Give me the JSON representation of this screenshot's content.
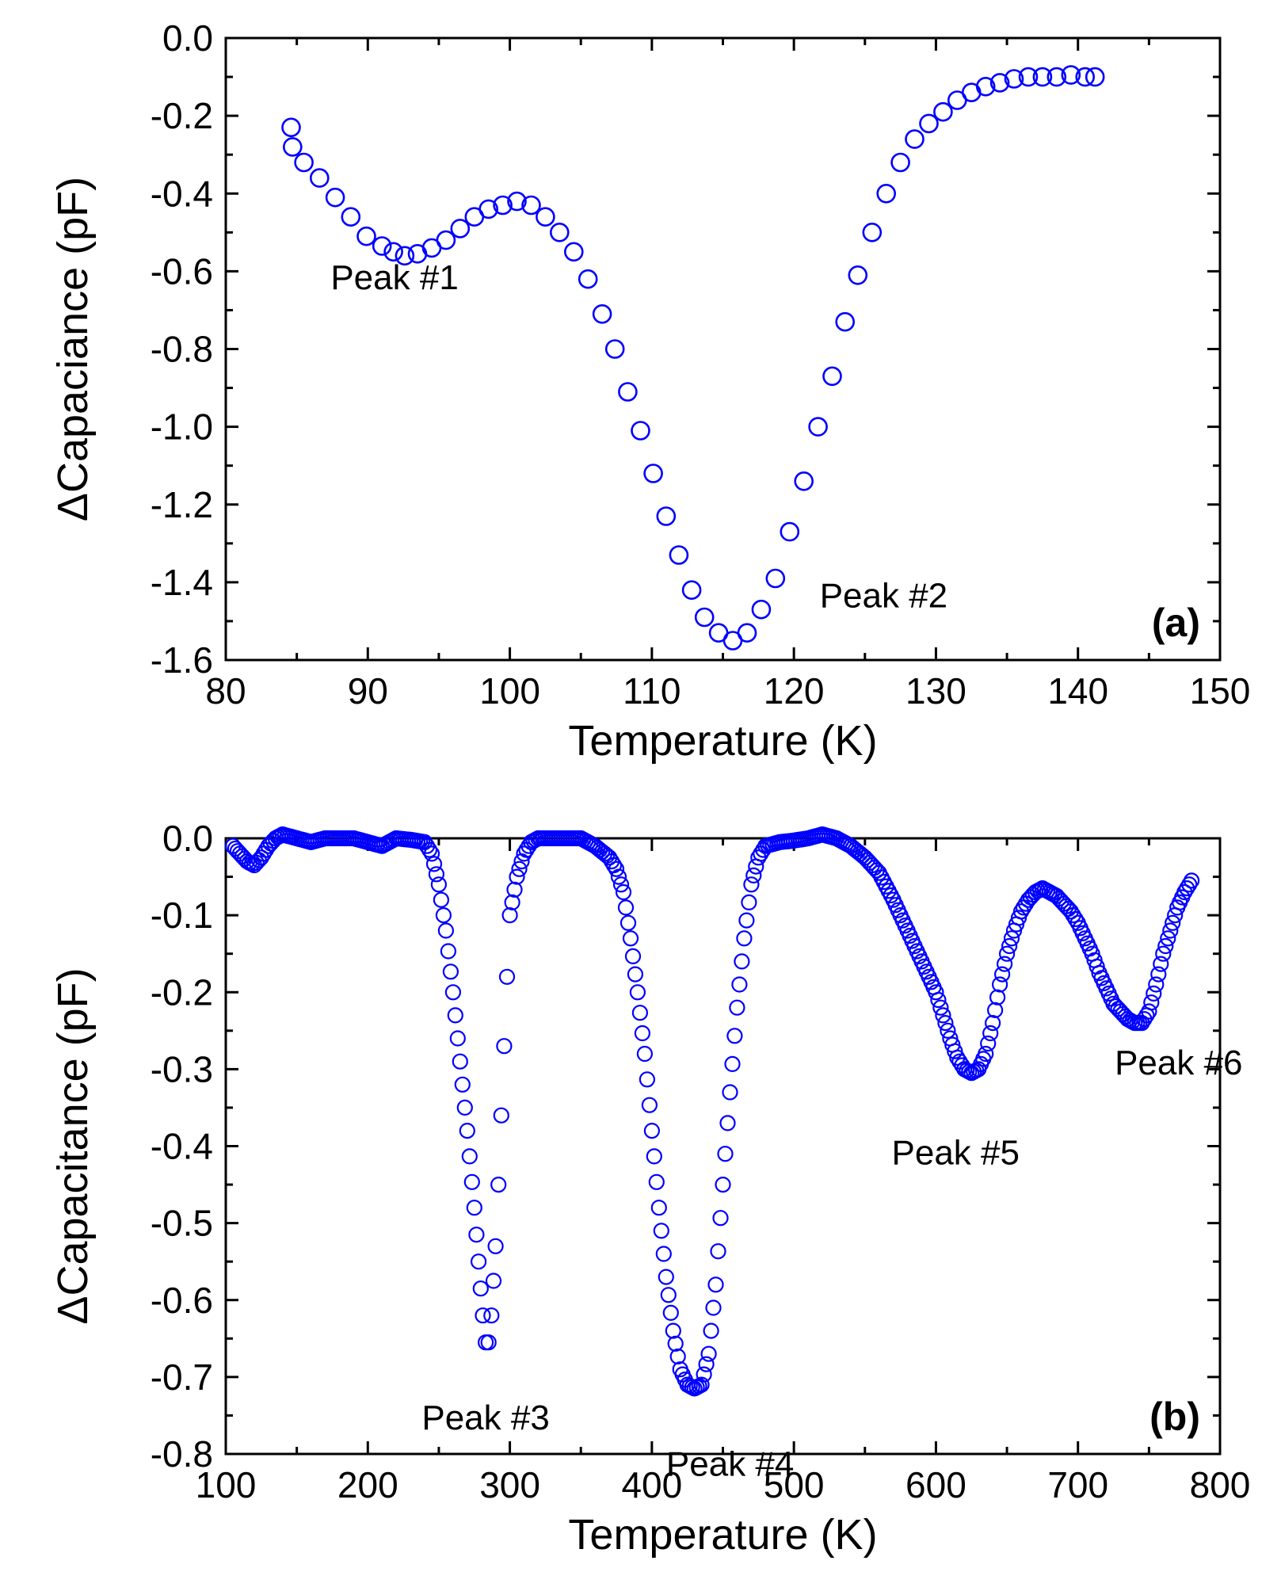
{
  "colors": {
    "marker": "#0000ff",
    "axis": "#000000",
    "background": "#ffffff"
  },
  "chart_data": [
    {
      "panel_label": "(a)",
      "type": "scatter",
      "marker": "open-circle",
      "xlabel": "Temperature (K)",
      "ylabel": "ΔCapaciance (pF)",
      "xlim": [
        80,
        150
      ],
      "ylim": [
        -1.6,
        0.0
      ],
      "xticks": [
        80,
        90,
        100,
        110,
        120,
        130,
        140,
        150
      ],
      "yticks": [
        0.0,
        -0.2,
        -0.4,
        -0.6,
        -0.8,
        -1.0,
        -1.2,
        -1.4,
        -1.6
      ],
      "xtick_labels": [
        "80",
        "90",
        "100",
        "110",
        "120",
        "130",
        "140",
        "150"
      ],
      "ytick_labels": [
        "0.0",
        "-0.2",
        "-0.4",
        "-0.6",
        "-0.8",
        "-1.0",
        "-1.2",
        "-1.4",
        "-1.6"
      ],
      "annotations": [
        {
          "text": "Peak #1",
          "x": 93,
          "y": -0.56
        },
        {
          "text": "Peak #2",
          "x": 116,
          "y": -1.55
        }
      ],
      "points": [
        [
          84.6,
          -0.23
        ],
        [
          84.7,
          -0.28
        ],
        [
          85.5,
          -0.32
        ],
        [
          86.6,
          -0.36
        ],
        [
          87.7,
          -0.41
        ],
        [
          88.8,
          -0.46
        ],
        [
          89.9,
          -0.51
        ],
        [
          91.0,
          -0.535
        ],
        [
          91.8,
          -0.55
        ],
        [
          92.6,
          -0.56
        ],
        [
          93.5,
          -0.555
        ],
        [
          94.5,
          -0.54
        ],
        [
          95.5,
          -0.52
        ],
        [
          96.5,
          -0.49
        ],
        [
          97.5,
          -0.46
        ],
        [
          98.5,
          -0.44
        ],
        [
          99.5,
          -0.43
        ],
        [
          100.5,
          -0.42
        ],
        [
          101.5,
          -0.43
        ],
        [
          102.5,
          -0.46
        ],
        [
          103.5,
          -0.5
        ],
        [
          104.5,
          -0.55
        ],
        [
          105.5,
          -0.62
        ],
        [
          106.5,
          -0.71
        ],
        [
          107.4,
          -0.8
        ],
        [
          108.3,
          -0.91
        ],
        [
          109.2,
          -1.01
        ],
        [
          110.1,
          -1.12
        ],
        [
          111.0,
          -1.23
        ],
        [
          111.9,
          -1.33
        ],
        [
          112.8,
          -1.42
        ],
        [
          113.7,
          -1.49
        ],
        [
          114.7,
          -1.53
        ],
        [
          115.7,
          -1.55
        ],
        [
          116.7,
          -1.53
        ],
        [
          117.7,
          -1.47
        ],
        [
          118.7,
          -1.39
        ],
        [
          119.7,
          -1.27
        ],
        [
          120.7,
          -1.14
        ],
        [
          121.7,
          -1.0
        ],
        [
          122.7,
          -0.87
        ],
        [
          123.6,
          -0.73
        ],
        [
          124.5,
          -0.61
        ],
        [
          125.5,
          -0.5
        ],
        [
          126.5,
          -0.4
        ],
        [
          127.5,
          -0.32
        ],
        [
          128.5,
          -0.26
        ],
        [
          129.5,
          -0.22
        ],
        [
          130.5,
          -0.19
        ],
        [
          131.5,
          -0.16
        ],
        [
          132.5,
          -0.14
        ],
        [
          133.5,
          -0.125
        ],
        [
          134.5,
          -0.115
        ],
        [
          135.5,
          -0.105
        ],
        [
          136.5,
          -0.1
        ],
        [
          137.5,
          -0.1
        ],
        [
          138.5,
          -0.1
        ],
        [
          139.5,
          -0.095
        ],
        [
          140.5,
          -0.1
        ],
        [
          141.2,
          -0.1
        ]
      ]
    },
    {
      "panel_label": "(b)",
      "type": "scatter",
      "marker": "open-circle",
      "xlabel": "Temperature (K)",
      "ylabel": "ΔCapacitance (pF)",
      "xlim": [
        100,
        800
      ],
      "ylim": [
        -0.8,
        0.0
      ],
      "xticks": [
        100,
        200,
        300,
        400,
        500,
        600,
        700,
        800
      ],
      "yticks": [
        0.0,
        -0.1,
        -0.2,
        -0.3,
        -0.4,
        -0.5,
        -0.6,
        -0.7,
        -0.8
      ],
      "xtick_labels": [
        "100",
        "200",
        "300",
        "400",
        "500",
        "600",
        "700",
        "800"
      ],
      "ytick_labels": [
        "0.0",
        "-0.1",
        "-0.2",
        "-0.3",
        "-0.4",
        "-0.5",
        "-0.6",
        "-0.7",
        "-0.8"
      ],
      "annotations": [
        {
          "text": "Peak #3",
          "x": 283,
          "y": -0.66
        },
        {
          "text": "Peak #4",
          "x": 430,
          "y": -0.71
        },
        {
          "text": "Peak #5",
          "x": 625,
          "y": -0.3
        },
        {
          "text": "Peak #6",
          "x": 743,
          "y": -0.245
        }
      ],
      "curve": [
        [
          105,
          -0.01
        ],
        [
          110,
          -0.02
        ],
        [
          115,
          -0.03
        ],
        [
          120,
          -0.035
        ],
        [
          125,
          -0.025
        ],
        [
          130,
          -0.01
        ],
        [
          135,
          0.0
        ],
        [
          140,
          0.005
        ],
        [
          150,
          0.0
        ],
        [
          160,
          -0.005
        ],
        [
          170,
          0.0
        ],
        [
          180,
          0.0
        ],
        [
          190,
          0.0
        ],
        [
          200,
          -0.005
        ],
        [
          210,
          -0.01
        ],
        [
          220,
          0.0
        ],
        [
          230,
          -0.002
        ],
        [
          240,
          -0.005
        ],
        [
          245,
          -0.02
        ],
        [
          250,
          -0.06
        ],
        [
          255,
          -0.12
        ],
        [
          260,
          -0.2
        ],
        [
          265,
          -0.29
        ],
        [
          270,
          -0.38
        ],
        [
          275,
          -0.48
        ],
        [
          278,
          -0.55
        ],
        [
          281,
          -0.62
        ],
        [
          283,
          -0.655
        ],
        [
          285,
          -0.655
        ],
        [
          287,
          -0.62
        ],
        [
          290,
          -0.53
        ],
        [
          292,
          -0.45
        ],
        [
          294,
          -0.36
        ],
        [
          296,
          -0.27
        ],
        [
          298,
          -0.18
        ],
        [
          300,
          -0.1
        ],
        [
          305,
          -0.05
        ],
        [
          310,
          -0.02
        ],
        [
          315,
          -0.005
        ],
        [
          320,
          0.0
        ],
        [
          330,
          0.0
        ],
        [
          340,
          0.0
        ],
        [
          350,
          0.0
        ],
        [
          360,
          -0.01
        ],
        [
          370,
          -0.025
        ],
        [
          375,
          -0.04
        ],
        [
          380,
          -0.07
        ],
        [
          385,
          -0.13
        ],
        [
          390,
          -0.2
        ],
        [
          395,
          -0.28
        ],
        [
          400,
          -0.38
        ],
        [
          405,
          -0.48
        ],
        [
          410,
          -0.57
        ],
        [
          415,
          -0.64
        ],
        [
          420,
          -0.69
        ],
        [
          425,
          -0.71
        ],
        [
          430,
          -0.715
        ],
        [
          435,
          -0.71
        ],
        [
          440,
          -0.67
        ],
        [
          445,
          -0.58
        ],
        [
          450,
          -0.45
        ],
        [
          455,
          -0.33
        ],
        [
          460,
          -0.22
        ],
        [
          465,
          -0.13
        ],
        [
          470,
          -0.06
        ],
        [
          475,
          -0.025
        ],
        [
          480,
          -0.01
        ],
        [
          490,
          -0.005
        ],
        [
          500,
          -0.003
        ],
        [
          510,
          0.0
        ],
        [
          520,
          0.005
        ],
        [
          530,
          0.0
        ],
        [
          540,
          -0.01
        ],
        [
          550,
          -0.025
        ],
        [
          560,
          -0.045
        ],
        [
          570,
          -0.08
        ],
        [
          580,
          -0.12
        ],
        [
          590,
          -0.16
        ],
        [
          600,
          -0.2
        ],
        [
          605,
          -0.23
        ],
        [
          610,
          -0.26
        ],
        [
          615,
          -0.285
        ],
        [
          620,
          -0.3
        ],
        [
          625,
          -0.305
        ],
        [
          630,
          -0.3
        ],
        [
          635,
          -0.28
        ],
        [
          640,
          -0.24
        ],
        [
          645,
          -0.19
        ],
        [
          650,
          -0.15
        ],
        [
          655,
          -0.12
        ],
        [
          660,
          -0.095
        ],
        [
          665,
          -0.08
        ],
        [
          670,
          -0.07
        ],
        [
          675,
          -0.065
        ],
        [
          680,
          -0.07
        ],
        [
          685,
          -0.075
        ],
        [
          690,
          -0.085
        ],
        [
          695,
          -0.095
        ],
        [
          700,
          -0.11
        ],
        [
          705,
          -0.13
        ],
        [
          710,
          -0.15
        ],
        [
          715,
          -0.175
        ],
        [
          720,
          -0.195
        ],
        [
          725,
          -0.215
        ],
        [
          730,
          -0.225
        ],
        [
          735,
          -0.235
        ],
        [
          740,
          -0.24
        ],
        [
          745,
          -0.24
        ],
        [
          750,
          -0.225
        ],
        [
          755,
          -0.19
        ],
        [
          760,
          -0.15
        ],
        [
          765,
          -0.12
        ],
        [
          770,
          -0.09
        ],
        [
          775,
          -0.07
        ],
        [
          780,
          -0.055
        ]
      ]
    }
  ]
}
